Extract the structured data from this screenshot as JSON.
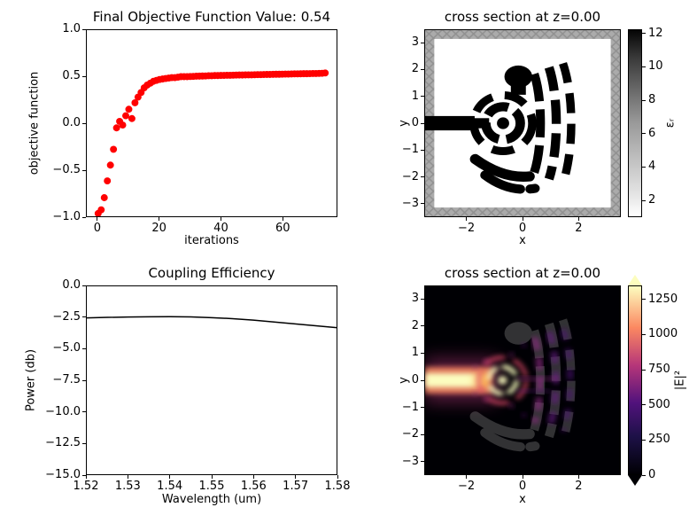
{
  "figure": {
    "background": "#ffffff"
  },
  "chart_data": [
    {
      "name": "objective-history",
      "type": "scatter",
      "title": "Final Objective Function Value: 0.54",
      "xlabel": "iterations",
      "ylabel": "objective function",
      "xlim": [
        -3.7,
        77.7
      ],
      "ylim": [
        -1.0,
        1.0
      ],
      "xticks": [
        0,
        20,
        40,
        60
      ],
      "xtick_labels": [
        "0",
        "20",
        "40",
        "60"
      ],
      "yticks": [
        -1.0,
        -0.5,
        0.0,
        0.5,
        1.0
      ],
      "ytick_labels": [
        "−1.0",
        "−0.5",
        "0.0",
        "0.5",
        "1.0"
      ],
      "marker_color": "#ff0000",
      "x": [
        0,
        1,
        2,
        3,
        4,
        5,
        6,
        7,
        8,
        9,
        10,
        11,
        12,
        13,
        14,
        15,
        16,
        17,
        18,
        19,
        20,
        21,
        22,
        23,
        24,
        25,
        26,
        27,
        28,
        29,
        30,
        31,
        32,
        33,
        34,
        35,
        36,
        37,
        38,
        39,
        40,
        41,
        42,
        43,
        44,
        45,
        46,
        47,
        48,
        49,
        50,
        51,
        52,
        53,
        54,
        55,
        56,
        57,
        58,
        59,
        60,
        61,
        62,
        63,
        64,
        65,
        66,
        67,
        68,
        69,
        70,
        71,
        72,
        73,
        74
      ],
      "y": [
        -0.97,
        -0.93,
        -0.8,
        -0.62,
        -0.45,
        -0.28,
        -0.05,
        0.02,
        -0.02,
        0.08,
        0.15,
        0.05,
        0.22,
        0.28,
        0.33,
        0.38,
        0.41,
        0.43,
        0.45,
        0.46,
        0.47,
        0.475,
        0.48,
        0.485,
        0.49,
        0.49,
        0.495,
        0.5,
        0.5,
        0.5,
        0.502,
        0.503,
        0.505,
        0.506,
        0.507,
        0.508,
        0.51,
        0.51,
        0.512,
        0.512,
        0.513,
        0.514,
        0.515,
        0.515,
        0.516,
        0.517,
        0.518,
        0.518,
        0.519,
        0.52,
        0.52,
        0.521,
        0.522,
        0.522,
        0.523,
        0.524,
        0.524,
        0.525,
        0.526,
        0.526,
        0.527,
        0.528,
        0.528,
        0.529,
        0.53,
        0.53,
        0.531,
        0.532,
        0.532,
        0.533,
        0.534,
        0.534,
        0.535,
        0.536,
        0.54
      ]
    },
    {
      "name": "permittivity-cross-section",
      "type": "heatmap",
      "title": "cross section at z=0.00",
      "xlabel": "x",
      "ylabel": "y",
      "xlim": [
        -3.5,
        3.5
      ],
      "ylim": [
        -3.5,
        3.5
      ],
      "xticks": [
        -2,
        0,
        2
      ],
      "xtick_labels": [
        "−2",
        "0",
        "2"
      ],
      "yticks": [
        -3,
        -2,
        -1,
        0,
        1,
        2,
        3
      ],
      "ytick_labels": [
        "−3",
        "−2",
        "−1",
        "0",
        "1",
        "2",
        "3"
      ],
      "colormap": "binary",
      "colorbar": {
        "label": "εᵣ",
        "min": 1.0,
        "max": 12.25,
        "ticks": [
          2,
          4,
          6,
          8,
          10,
          12
        ],
        "tick_labels": [
          "2",
          "4",
          "6",
          "8",
          "10",
          "12"
        ]
      }
    },
    {
      "name": "coupling-efficiency",
      "type": "line",
      "title": "Coupling Efficiency",
      "xlabel": "Wavelength (um)",
      "ylabel": "Power (db)",
      "xlim": [
        1.52,
        1.58
      ],
      "ylim": [
        -15.0,
        0.0
      ],
      "xticks": [
        1.52,
        1.53,
        1.54,
        1.55,
        1.56,
        1.57,
        1.58
      ],
      "xtick_labels": [
        "1.52",
        "1.53",
        "1.54",
        "1.55",
        "1.56",
        "1.57",
        "1.58"
      ],
      "yticks": [
        0.0,
        -2.5,
        -5.0,
        -7.5,
        -10.0,
        -12.5,
        -15.0
      ],
      "ytick_labels": [
        "0.0",
        "−2.5",
        "−5.0",
        "−7.5",
        "−10.0",
        "−12.5",
        "−15.0"
      ],
      "line_color": "#000000",
      "x": [
        1.52,
        1.525,
        1.53,
        1.535,
        1.54,
        1.545,
        1.55,
        1.555,
        1.56,
        1.565,
        1.57,
        1.575,
        1.58
      ],
      "y": [
        -2.52,
        -2.48,
        -2.45,
        -2.43,
        -2.42,
        -2.44,
        -2.5,
        -2.58,
        -2.7,
        -2.85,
        -3.0,
        -3.15,
        -3.3
      ]
    },
    {
      "name": "field-intensity-cross-section",
      "type": "heatmap",
      "title": "cross section at z=0.00",
      "xlabel": "x",
      "ylabel": "y",
      "xlim": [
        -3.5,
        3.5
      ],
      "ylim": [
        -3.5,
        3.5
      ],
      "xticks": [
        -2,
        0,
        2
      ],
      "xtick_labels": [
        "−2",
        "0",
        "2"
      ],
      "yticks": [
        -3,
        -2,
        -1,
        0,
        1,
        2,
        3
      ],
      "ytick_labels": [
        "−3",
        "−2",
        "−1",
        "0",
        "1",
        "2",
        "3"
      ],
      "colormap": "magma",
      "colorbar": {
        "label": "|E|²",
        "min": 0,
        "max": 1350,
        "ticks": [
          0,
          250,
          500,
          750,
          1000,
          1250
        ],
        "tick_labels": [
          "0",
          "250",
          "500",
          "750",
          "1000",
          "1250"
        ]
      }
    }
  ]
}
